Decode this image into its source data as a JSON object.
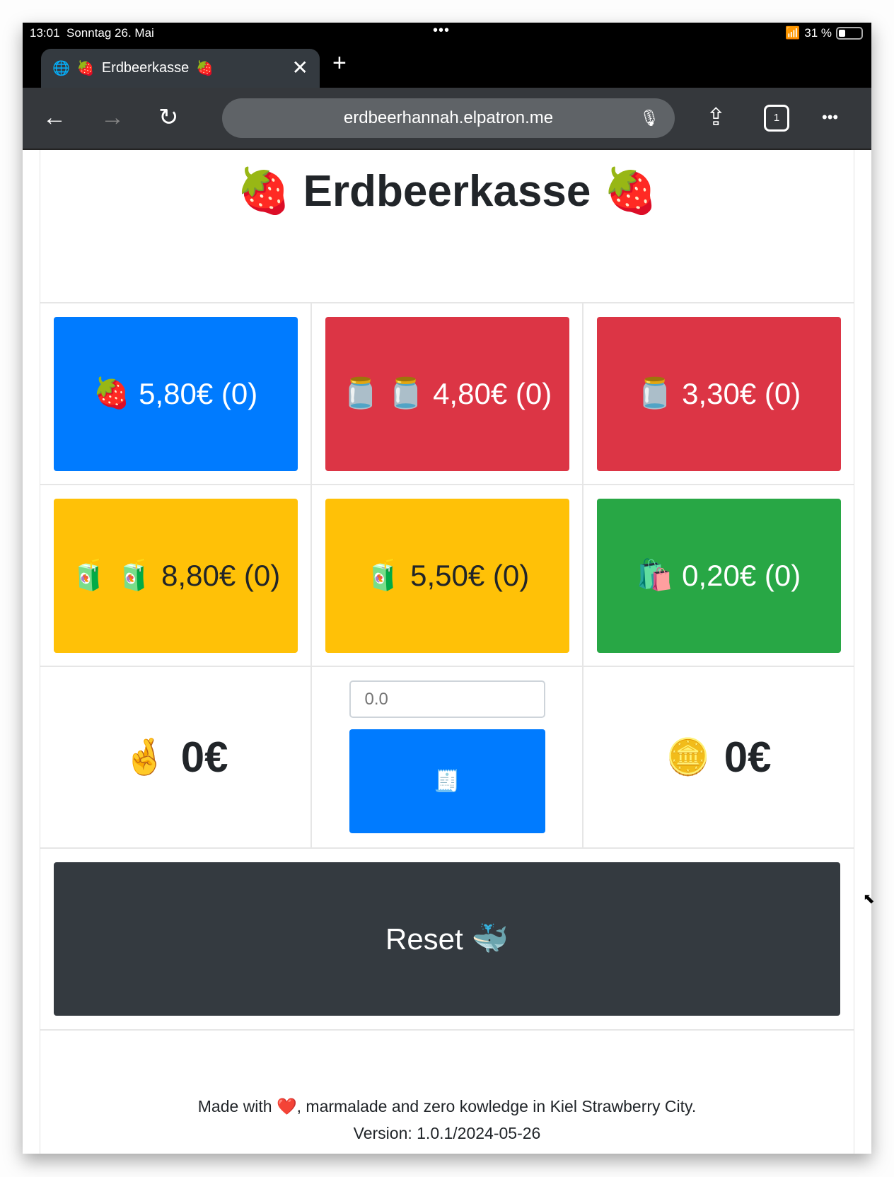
{
  "status": {
    "time": "13:01",
    "date": "Sonntag 26. Mai",
    "dots": "•••",
    "battery": "31 %",
    "battery_level": 0.31
  },
  "tab": {
    "title": "Erdbeerkasse",
    "emoji": "🍓",
    "new_tab": "+",
    "close": "✕"
  },
  "toolbar": {
    "url": "erdbeerhannah.elpatron.me",
    "tab_count": "1",
    "back": "←",
    "forward": "→",
    "reload": "↻",
    "share": "⇪",
    "more": "•••",
    "mic": "🎙"
  },
  "page": {
    "title": "Erdbeerkasse",
    "title_emoji": "🍓",
    "products": [
      {
        "emoji": "🍓",
        "label": "5,80€ (0)",
        "color": "#007bff"
      },
      {
        "emoji": "🫙 🫙",
        "label": "4,80€ (0)",
        "color": "#dc3545"
      },
      {
        "emoji": "🫙",
        "label": "3,30€ (0)",
        "color": "#dc3545"
      },
      {
        "emoji": "🧃 🧃",
        "label": "8,80€ (0)",
        "color": "#ffc107"
      },
      {
        "emoji": "🧃",
        "label": "5,50€ (0)",
        "color": "#ffc107"
      },
      {
        "emoji": "🛍️",
        "label": "0,20€ (0)",
        "color": "#28a745"
      }
    ],
    "total_left": {
      "emoji": "🤞",
      "value": "0€"
    },
    "given_input": {
      "placeholder": "0.0"
    },
    "receipt_button": {
      "emoji": "🧾"
    },
    "total_right": {
      "emoji": "🪙",
      "value": "0€"
    },
    "reset": {
      "label": "Reset",
      "emoji": "🐳"
    },
    "footer": {
      "made_with": "Made with",
      "heart": "❤️",
      "rest": ", marmalade and zero kowledge in Kiel Strawberry City.",
      "version": "Version: 1.0.1/2024-05-26"
    }
  }
}
